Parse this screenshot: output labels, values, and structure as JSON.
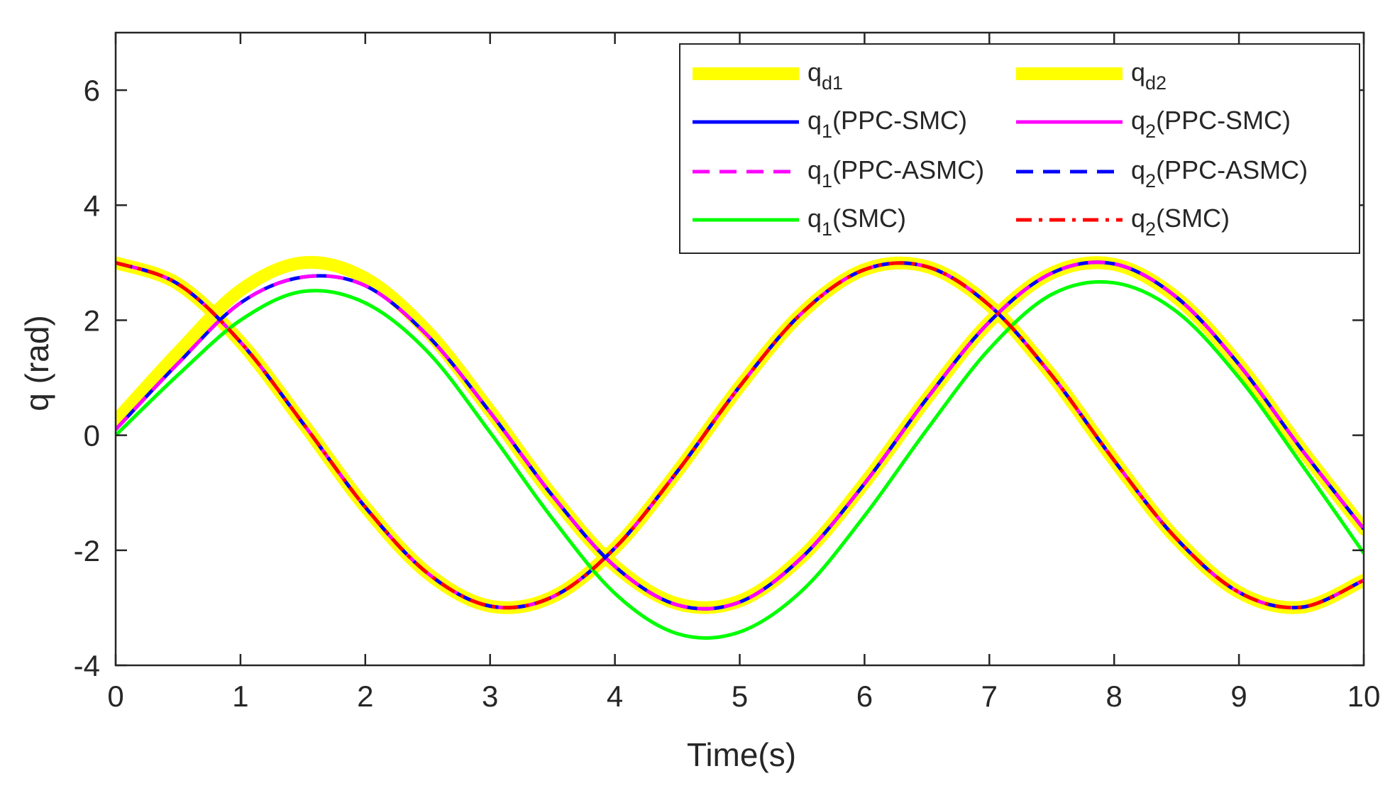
{
  "chart_data": {
    "type": "line",
    "title": "",
    "xlabel": "Time(s)",
    "ylabel": "q (rad)",
    "xlim": [
      0,
      10
    ],
    "ylim": [
      -4,
      7
    ],
    "xticks": [
      "0",
      "1",
      "2",
      "3",
      "4",
      "5",
      "6",
      "7",
      "8",
      "9",
      "10"
    ],
    "yticks": [
      "-4",
      "-2",
      "0",
      "2",
      "4",
      "6"
    ],
    "grid": false,
    "legend_position": "top-right",
    "legend_columns": 2,
    "series": [
      {
        "name": "q_d1",
        "label_main": "q",
        "label_sub": "d1",
        "label_suffix": "",
        "color": "#FFFF00",
        "style": "solid",
        "width": "thick",
        "x": [
          0,
          0.5,
          1,
          1.5,
          2,
          2.5,
          3,
          3.5,
          4,
          4.5,
          5,
          5.5,
          6,
          6.5,
          7,
          7.5,
          8,
          8.5,
          9,
          9.5,
          10
        ],
        "values": [
          0.25,
          1.44,
          2.52,
          3.0,
          2.73,
          1.8,
          0.42,
          -1.05,
          -2.27,
          -2.93,
          -2.88,
          -2.11,
          -0.83,
          0.64,
          1.97,
          2.82,
          2.97,
          2.39,
          1.23,
          -0.24,
          -1.63
        ]
      },
      {
        "name": "q_d2",
        "label_main": "q",
        "label_sub": "d2",
        "label_suffix": "",
        "color": "#FFFF00",
        "style": "solid",
        "width": "thick",
        "x": [
          0,
          0.5,
          1,
          1.5,
          2,
          2.5,
          3,
          3.5,
          4,
          4.5,
          5,
          5.5,
          6,
          6.5,
          7,
          7.5,
          8,
          8.5,
          9,
          9.5,
          10
        ],
        "values": [
          3.0,
          2.63,
          1.62,
          0.21,
          -1.25,
          -2.4,
          -2.97,
          -2.81,
          -1.96,
          -0.63,
          0.85,
          2.13,
          2.88,
          2.93,
          2.26,
          1.04,
          -0.44,
          -1.8,
          -2.73,
          -2.99,
          -2.52
        ]
      },
      {
        "name": "q_1(PPC-SMC)",
        "label_main": "q",
        "label_sub": "1",
        "label_suffix": "(PPC-SMC)",
        "color": "#0000FF",
        "style": "solid",
        "width": "normal",
        "x": [
          0,
          0.5,
          1,
          1.5,
          2,
          2.5,
          3,
          3.5,
          4,
          4.5,
          5,
          5.5,
          6,
          6.5,
          7,
          7.5,
          8,
          8.5,
          9,
          9.5,
          10
        ],
        "values": [
          0.1,
          1.25,
          2.3,
          2.75,
          2.6,
          1.73,
          0.4,
          -1.05,
          -2.28,
          -2.95,
          -2.9,
          -2.12,
          -0.84,
          0.64,
          1.97,
          2.82,
          2.98,
          2.4,
          1.23,
          -0.24,
          -1.63
        ]
      },
      {
        "name": "q_2(PPC-SMC)",
        "label_main": "q",
        "label_sub": "2",
        "label_suffix": "(PPC-SMC)",
        "color": "#FF00FF",
        "style": "solid",
        "width": "normal",
        "x": [
          0,
          0.5,
          1,
          1.5,
          2,
          2.5,
          3,
          3.5,
          4,
          4.5,
          5,
          5.5,
          6,
          6.5,
          7,
          7.5,
          8,
          8.5,
          9,
          9.5,
          10
        ],
        "values": [
          3.0,
          2.63,
          1.62,
          0.21,
          -1.25,
          -2.4,
          -2.97,
          -2.81,
          -1.96,
          -0.63,
          0.85,
          2.13,
          2.88,
          2.93,
          2.26,
          1.04,
          -0.44,
          -1.8,
          -2.73,
          -2.99,
          -2.52
        ]
      },
      {
        "name": "q_1(PPC-ASMC)",
        "label_main": "q",
        "label_sub": "1",
        "label_suffix": "(PPC-ASMC)",
        "color": "#FF00FF",
        "style": "dashed",
        "width": "normal",
        "x": [
          0,
          0.5,
          1,
          1.5,
          2,
          2.5,
          3,
          3.5,
          4,
          4.5,
          5,
          5.5,
          6,
          6.5,
          7,
          7.5,
          8,
          8.5,
          9,
          9.5,
          10
        ],
        "values": [
          0.1,
          1.25,
          2.3,
          2.75,
          2.6,
          1.73,
          0.4,
          -1.05,
          -2.28,
          -2.95,
          -2.9,
          -2.12,
          -0.84,
          0.64,
          1.97,
          2.82,
          2.98,
          2.4,
          1.23,
          -0.24,
          -1.63
        ]
      },
      {
        "name": "q_2(PPC-ASMC)",
        "label_main": "q",
        "label_sub": "2",
        "label_suffix": "(PPC-ASMC)",
        "color": "#0000FF",
        "style": "dashed",
        "width": "normal",
        "x": [
          0,
          0.5,
          1,
          1.5,
          2,
          2.5,
          3,
          3.5,
          4,
          4.5,
          5,
          5.5,
          6,
          6.5,
          7,
          7.5,
          8,
          8.5,
          9,
          9.5,
          10
        ],
        "values": [
          3.0,
          2.63,
          1.62,
          0.21,
          -1.25,
          -2.4,
          -2.97,
          -2.81,
          -1.96,
          -0.63,
          0.85,
          2.13,
          2.88,
          2.93,
          2.26,
          1.04,
          -0.44,
          -1.8,
          -2.73,
          -2.99,
          -2.52
        ]
      },
      {
        "name": "q_1(SMC)",
        "label_main": "q",
        "label_sub": "1",
        "label_suffix": "(SMC)",
        "color": "#00FF00",
        "style": "solid",
        "width": "normal",
        "x": [
          0,
          0.5,
          1,
          1.5,
          2,
          2.5,
          3,
          3.5,
          4,
          4.5,
          5,
          5.5,
          6,
          6.5,
          7,
          7.5,
          8,
          8.5,
          9,
          9.5,
          10
        ],
        "values": [
          0.0,
          1.05,
          2.0,
          2.5,
          2.3,
          1.45,
          0.05,
          -1.45,
          -2.75,
          -3.45,
          -3.42,
          -2.7,
          -1.4,
          0.1,
          1.5,
          2.45,
          2.65,
          2.15,
          1.0,
          -0.5,
          -2.05
        ]
      },
      {
        "name": "q_2(SMC)",
        "label_main": "q",
        "label_sub": "2",
        "label_suffix": "(SMC)",
        "color": "#FF0000",
        "style": "dashdot",
        "width": "normal",
        "x": [
          0,
          0.5,
          1,
          1.5,
          2,
          2.5,
          3,
          3.5,
          4,
          4.5,
          5,
          5.5,
          6,
          6.5,
          7,
          7.5,
          8,
          8.5,
          9,
          9.5,
          10
        ],
        "values": [
          3.0,
          2.63,
          1.62,
          0.21,
          -1.25,
          -2.4,
          -2.97,
          -2.81,
          -1.96,
          -0.63,
          0.85,
          2.13,
          2.88,
          2.93,
          2.26,
          1.04,
          -0.44,
          -1.8,
          -2.73,
          -2.99,
          -2.52
        ]
      }
    ]
  }
}
